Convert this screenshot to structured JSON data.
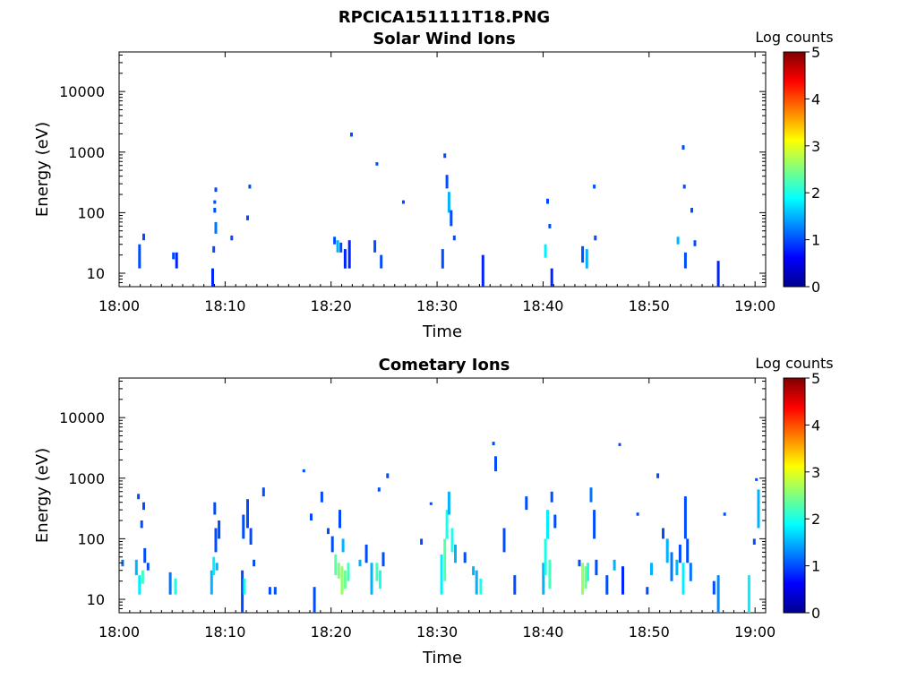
{
  "figure_title": "RPCICA151111T18.PNG",
  "chart_data": [
    {
      "type": "heatmap",
      "title": "Solar Wind Ions",
      "xlabel": "Time",
      "ylabel": "Energy (eV)",
      "x_ticks": [
        "18:00",
        "18:10",
        "18:20",
        "18:30",
        "18:40",
        "18:50",
        "19:00"
      ],
      "x_range_min": [
        0,
        61
      ],
      "y_scale": "log",
      "y_ticks": [
        "10",
        "100",
        "1000",
        "10000"
      ],
      "y_range_eV": [
        6,
        45000
      ],
      "colorbar": {
        "label": "Log counts",
        "ticks": [
          "0",
          "1",
          "2",
          "3",
          "4",
          "5"
        ],
        "range": [
          0,
          5
        ]
      },
      "cells": [
        [
          1.8,
          12,
          30,
          1.0
        ],
        [
          2.2,
          35,
          45,
          1.0
        ],
        [
          5.0,
          17,
          22,
          1.0
        ],
        [
          5.3,
          12,
          22,
          0.8
        ],
        [
          8.7,
          6,
          12,
          0.8
        ],
        [
          8.8,
          22,
          28,
          1.0
        ],
        [
          8.9,
          100,
          120,
          1.0
        ],
        [
          8.9,
          140,
          160,
          1.0
        ],
        [
          9.0,
          220,
          260,
          1.0
        ],
        [
          9.0,
          45,
          70,
          1.2
        ],
        [
          10.5,
          35,
          42,
          1.0
        ],
        [
          12.0,
          75,
          90,
          1.0
        ],
        [
          12.2,
          250,
          290,
          1.0
        ],
        [
          20.2,
          30,
          40,
          1.0
        ],
        [
          20.5,
          22,
          35,
          1.5
        ],
        [
          20.8,
          22,
          32,
          1.0
        ],
        [
          21.2,
          12,
          25,
          0.8
        ],
        [
          21.6,
          12,
          35,
          0.8
        ],
        [
          21.8,
          1800,
          2100,
          1.0
        ],
        [
          24.0,
          22,
          35,
          1.0
        ],
        [
          24.2,
          600,
          680,
          1.0
        ],
        [
          24.6,
          12,
          20,
          1.0
        ],
        [
          26.7,
          140,
          160,
          1.0
        ],
        [
          30.4,
          12,
          25,
          1.0
        ],
        [
          30.6,
          800,
          950,
          1.0
        ],
        [
          30.8,
          250,
          420,
          1.0
        ],
        [
          31.0,
          100,
          220,
          1.5
        ],
        [
          31.2,
          60,
          110,
          1.0
        ],
        [
          31.5,
          35,
          42,
          1.0
        ],
        [
          34.2,
          6,
          20,
          0.8
        ],
        [
          40.1,
          18,
          30,
          1.8
        ],
        [
          40.3,
          140,
          170,
          1.0
        ],
        [
          40.5,
          55,
          65,
          1.0
        ],
        [
          40.7,
          6,
          12,
          0.8
        ],
        [
          43.6,
          15,
          28,
          1.0
        ],
        [
          44.0,
          12,
          25,
          1.5
        ],
        [
          44.7,
          250,
          290,
          1.0
        ],
        [
          44.8,
          35,
          42,
          1.0
        ],
        [
          52.6,
          30,
          40,
          1.5
        ],
        [
          53.1,
          1100,
          1300,
          1.0
        ],
        [
          53.2,
          250,
          290,
          1.0
        ],
        [
          53.3,
          12,
          22,
          1.0
        ],
        [
          53.9,
          100,
          120,
          1.0
        ],
        [
          54.2,
          28,
          35,
          1.0
        ],
        [
          56.4,
          6,
          16,
          0.8
        ]
      ]
    },
    {
      "type": "heatmap",
      "title": "Cometary Ions",
      "xlabel": "Time",
      "ylabel": "Energy (eV)",
      "x_ticks": [
        "18:00",
        "18:10",
        "18:20",
        "18:30",
        "18:40",
        "18:50",
        "19:00"
      ],
      "x_range_min": [
        0,
        61
      ],
      "y_scale": "log",
      "y_ticks": [
        "10",
        "100",
        "1000",
        "10000"
      ],
      "y_range_eV": [
        6,
        45000
      ],
      "colorbar": {
        "label": "Log counts",
        "ticks": [
          "0",
          "1",
          "2",
          "3",
          "4",
          "5"
        ],
        "range": [
          0,
          5
        ]
      },
      "cells": [
        [
          0.2,
          35,
          45,
          1.2
        ],
        [
          1.5,
          25,
          45,
          1.5
        ],
        [
          1.8,
          12,
          25,
          1.8
        ],
        [
          2.1,
          18,
          30,
          2.2
        ],
        [
          2.3,
          40,
          70,
          1.0
        ],
        [
          2.2,
          300,
          400,
          1.0
        ],
        [
          2.0,
          150,
          200,
          1.0
        ],
        [
          1.7,
          450,
          550,
          1.0
        ],
        [
          2.6,
          30,
          40,
          1.0
        ],
        [
          4.7,
          12,
          28,
          1.2
        ],
        [
          5.2,
          12,
          22,
          2.0
        ],
        [
          8.6,
          12,
          30,
          1.5
        ],
        [
          8.8,
          25,
          50,
          1.8
        ],
        [
          9.0,
          60,
          150,
          1.0
        ],
        [
          8.9,
          250,
          400,
          1.0
        ],
        [
          9.1,
          30,
          40,
          1.5
        ],
        [
          9.3,
          100,
          200,
          1.0
        ],
        [
          11.5,
          6,
          30,
          1.0
        ],
        [
          11.7,
          12,
          22,
          2.0
        ],
        [
          11.6,
          100,
          250,
          1.0
        ],
        [
          12.0,
          150,
          450,
          1.0
        ],
        [
          12.3,
          80,
          150,
          1.0
        ],
        [
          12.6,
          35,
          45,
          1.0
        ],
        [
          13.5,
          500,
          700,
          1.0
        ],
        [
          14.1,
          12,
          16,
          1.0
        ],
        [
          14.6,
          12,
          16,
          1.0
        ],
        [
          17.3,
          1250,
          1400,
          1.0
        ],
        [
          18.0,
          200,
          260,
          1.0
        ],
        [
          18.3,
          6,
          16,
          1.0
        ],
        [
          19.0,
          400,
          600,
          1.0
        ],
        [
          19.6,
          120,
          150,
          1.0
        ],
        [
          20.0,
          60,
          110,
          1.0
        ],
        [
          20.3,
          25,
          55,
          2.3
        ],
        [
          20.6,
          22,
          40,
          2.5
        ],
        [
          20.9,
          12,
          35,
          2.6
        ],
        [
          21.2,
          15,
          30,
          2.4
        ],
        [
          21.5,
          20,
          40,
          2.2
        ],
        [
          20.7,
          150,
          300,
          1.0
        ],
        [
          21.0,
          60,
          100,
          1.5
        ],
        [
          22.6,
          35,
          45,
          1.5
        ],
        [
          23.2,
          40,
          80,
          1.0
        ],
        [
          23.7,
          12,
          40,
          1.5
        ],
        [
          24.2,
          20,
          40,
          2.2
        ],
        [
          24.5,
          15,
          30,
          2.0
        ],
        [
          24.8,
          35,
          60,
          1.0
        ],
        [
          25.2,
          1000,
          1200,
          1.0
        ],
        [
          24.4,
          600,
          700,
          1.0
        ],
        [
          28.4,
          80,
          100,
          1.0
        ],
        [
          29.3,
          360,
          400,
          1.0
        ],
        [
          30.3,
          12,
          55,
          1.8
        ],
        [
          30.6,
          20,
          100,
          2.3
        ],
        [
          30.8,
          100,
          300,
          2.0
        ],
        [
          31.0,
          250,
          600,
          1.5
        ],
        [
          31.3,
          60,
          150,
          2.0
        ],
        [
          31.6,
          40,
          80,
          1.5
        ],
        [
          32.5,
          40,
          60,
          1.0
        ],
        [
          33.3,
          25,
          35,
          1.5
        ],
        [
          33.6,
          12,
          30,
          1.5
        ],
        [
          34.0,
          12,
          22,
          2.0
        ],
        [
          35.2,
          3500,
          4000,
          1.0
        ],
        [
          35.4,
          1300,
          2300,
          1.0
        ],
        [
          36.2,
          60,
          150,
          1.0
        ],
        [
          37.2,
          12,
          25,
          1.0
        ],
        [
          38.3,
          300,
          500,
          1.0
        ],
        [
          39.9,
          12,
          40,
          1.5
        ],
        [
          40.1,
          25,
          100,
          2.0
        ],
        [
          40.3,
          100,
          300,
          1.8
        ],
        [
          40.5,
          15,
          45,
          2.2
        ],
        [
          40.7,
          400,
          600,
          1.0
        ],
        [
          41.0,
          150,
          250,
          1.0
        ],
        [
          43.3,
          35,
          45,
          1.0
        ],
        [
          43.6,
          12,
          40,
          2.6
        ],
        [
          43.9,
          15,
          35,
          2.4
        ],
        [
          44.1,
          20,
          40,
          2.0
        ],
        [
          44.4,
          400,
          700,
          1.2
        ],
        [
          44.7,
          100,
          300,
          1.0
        ],
        [
          44.9,
          25,
          45,
          1.0
        ],
        [
          45.9,
          12,
          25,
          1.0
        ],
        [
          46.6,
          30,
          45,
          1.5
        ],
        [
          47.1,
          3400,
          3800,
          1.0
        ],
        [
          47.4,
          12,
          35,
          0.8
        ],
        [
          48.8,
          240,
          270,
          1.0
        ],
        [
          49.7,
          12,
          16,
          1.0
        ],
        [
          50.1,
          25,
          40,
          1.5
        ],
        [
          50.7,
          1000,
          1200,
          1.0
        ],
        [
          51.2,
          100,
          150,
          1.0
        ],
        [
          51.6,
          40,
          100,
          1.5
        ],
        [
          52.0,
          20,
          60,
          1.2
        ],
        [
          52.5,
          25,
          45,
          1.5
        ],
        [
          52.8,
          40,
          80,
          1.0
        ],
        [
          53.1,
          12,
          40,
          1.8
        ],
        [
          53.3,
          100,
          500,
          1.0
        ],
        [
          53.5,
          40,
          100,
          1.0
        ],
        [
          53.8,
          20,
          40,
          1.2
        ],
        [
          56.0,
          12,
          20,
          1.0
        ],
        [
          56.4,
          6,
          25,
          1.3
        ],
        [
          57.0,
          240,
          270,
          1.0
        ],
        [
          59.3,
          6,
          25,
          1.8
        ],
        [
          60.2,
          150,
          650,
          1.5
        ],
        [
          60.0,
          900,
          1000,
          1.0
        ],
        [
          59.8,
          80,
          100,
          1.0
        ]
      ]
    }
  ]
}
